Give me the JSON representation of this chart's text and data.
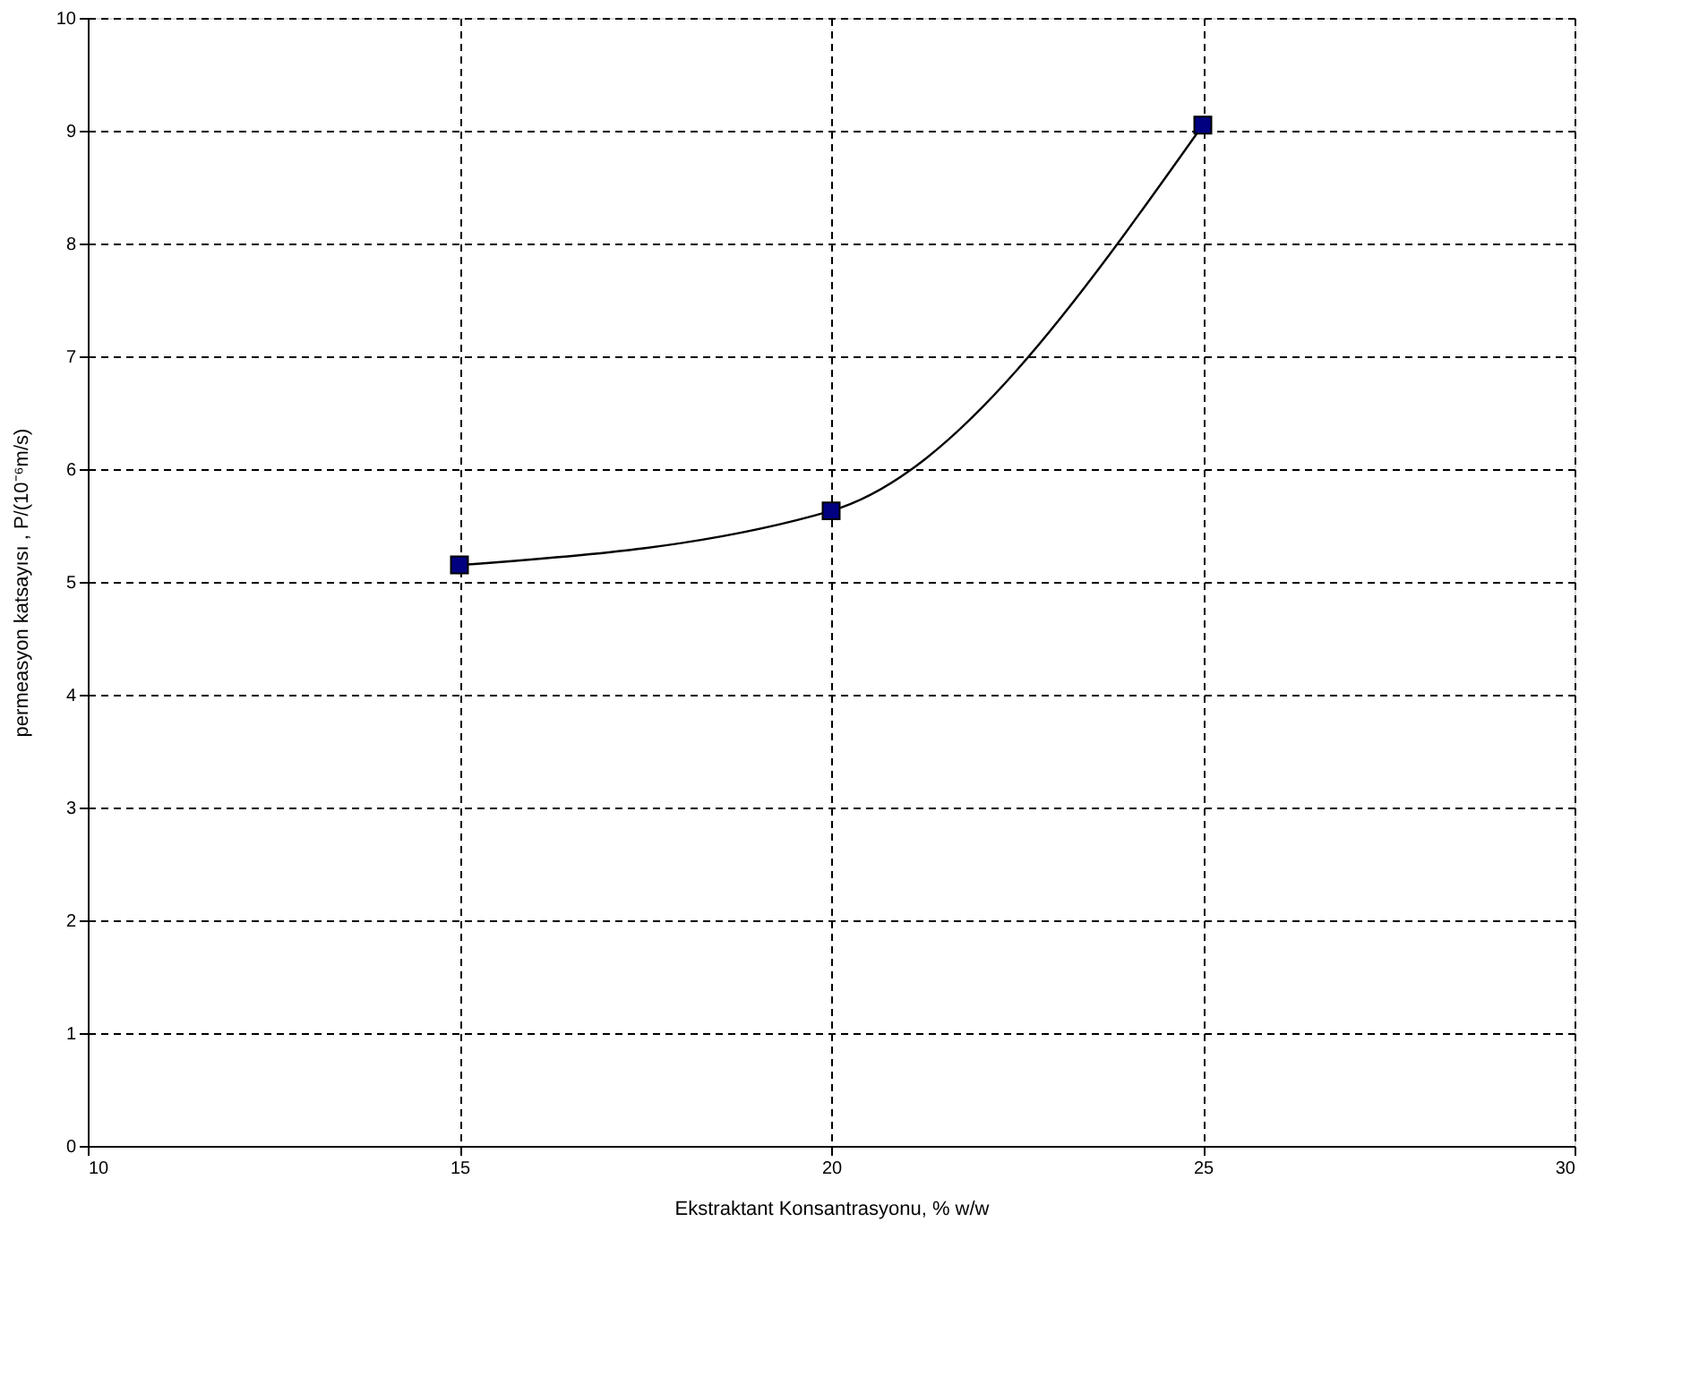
{
  "chart_data": {
    "type": "line",
    "xlabel": "Ekstraktant Konsantrasyonu, % w/w",
    "ylabel": "permeasyon katsayısı , P/(10⁻⁶m/s)",
    "x": [
      15,
      20,
      25
    ],
    "series": [
      {
        "color": "#000080",
        "values": [
          5.15,
          5.63,
          9.05
        ]
      }
    ],
    "xlim": [
      10,
      30
    ],
    "xticks": [
      10,
      15,
      20,
      25,
      30
    ],
    "ylim": [
      0,
      10
    ],
    "yticks": [
      0,
      1,
      2,
      3,
      4,
      5,
      6,
      7,
      8,
      9,
      10
    ],
    "grid": true,
    "marker": "square",
    "line_style": "solid"
  }
}
